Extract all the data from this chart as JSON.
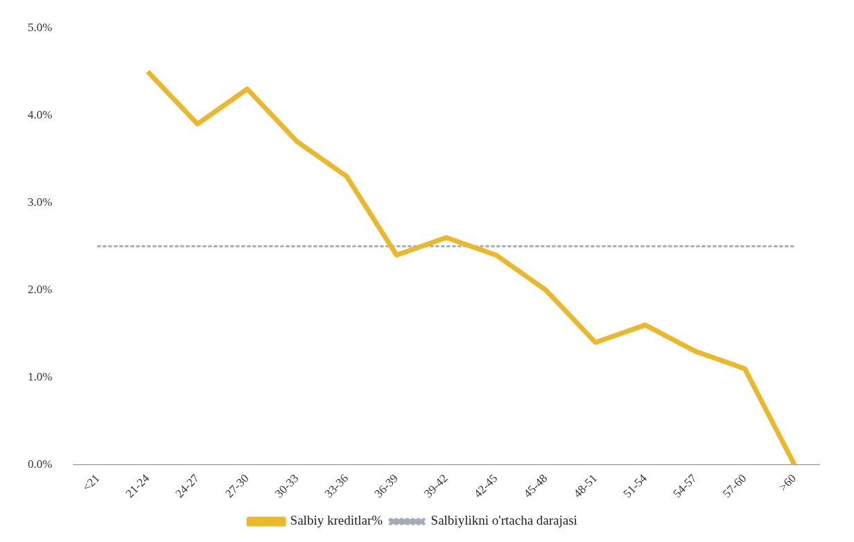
{
  "chart_data": {
    "type": "line",
    "categories": [
      "<21",
      "21-24",
      "24-27",
      "27-30",
      "30-33",
      "33-36",
      "36-39",
      "39-42",
      "42-45",
      "45-48",
      "48-51",
      "51-54",
      "54-57",
      "57-60",
      ">60"
    ],
    "series": [
      {
        "name": "Salbiy kreditlar%",
        "color": "#eab82a",
        "line_style": "solid",
        "values": [
          null,
          4.5,
          3.9,
          4.3,
          3.7,
          3.3,
          2.4,
          2.6,
          2.4,
          2.0,
          1.4,
          1.6,
          1.3,
          1.1,
          0.0
        ]
      },
      {
        "name": "Salbiylikni o'rtacha darajasi",
        "color": "#a3adb3",
        "line_style": "dotted",
        "values": [
          2.5,
          2.5,
          2.5,
          2.5,
          2.5,
          2.5,
          2.5,
          2.5,
          2.5,
          2.5,
          2.5,
          2.5,
          2.5,
          2.5,
          2.5
        ]
      }
    ],
    "ylim": [
      0,
      5
    ],
    "yticks": [
      {
        "value": 0,
        "label": "0.0%"
      },
      {
        "value": 1,
        "label": "1.0%"
      },
      {
        "value": 2,
        "label": "2.0%"
      },
      {
        "value": 3,
        "label": "3.0%"
      },
      {
        "value": 4,
        "label": "4.0%"
      },
      {
        "value": 5,
        "label": "5.0%"
      }
    ],
    "grid": false,
    "legend": "bottom",
    "marker": "none"
  }
}
